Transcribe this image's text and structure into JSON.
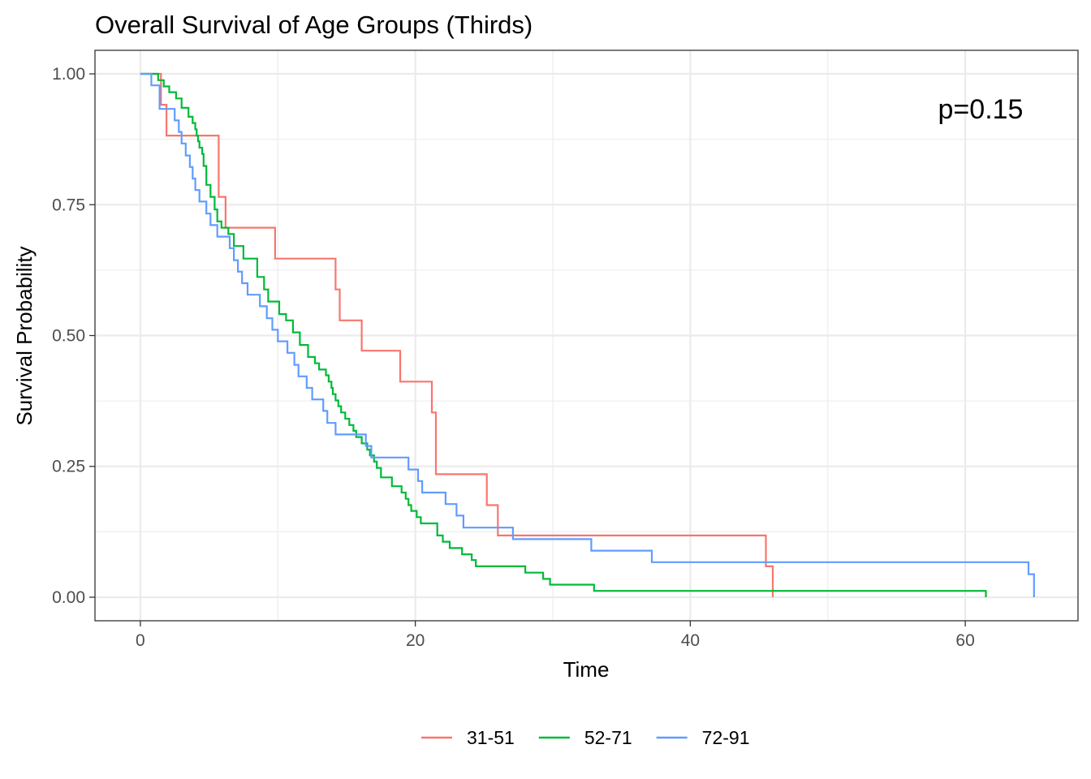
{
  "chart_data": {
    "type": "line",
    "step": true,
    "title": "Overall Survival of Age Groups (Thirds)",
    "xlabel": "Time",
    "ylabel": "Survival Probability",
    "xlim": [
      -3.3,
      68.2
    ],
    "ylim": [
      -0.045,
      1.045
    ],
    "x_ticks": [
      0,
      20,
      40,
      60
    ],
    "x_tick_labels": [
      "0",
      "20",
      "40",
      "60"
    ],
    "y_ticks": [
      0,
      0.25,
      0.5,
      0.75,
      1.0
    ],
    "y_tick_labels": [
      "0.00",
      "0.25",
      "0.50",
      "0.75",
      "1.00"
    ],
    "grid": true,
    "legend_position": "bottom",
    "annotation": "p=0.15",
    "series": [
      {
        "name": "31-51",
        "color": "#F8766D",
        "x": [
          0,
          1.5,
          1.9,
          5.7,
          6.2,
          9.8,
          14.2,
          14.5,
          16.1,
          18.9,
          21.2,
          21.5,
          25.2,
          26.0,
          45.5,
          46.0,
          46.0
        ],
        "y": [
          1.0,
          0.941,
          0.882,
          0.765,
          0.706,
          0.647,
          0.588,
          0.529,
          0.471,
          0.412,
          0.353,
          0.235,
          0.176,
          0.118,
          0.059,
          0.059,
          0.0
        ]
      },
      {
        "name": "52-71",
        "color": "#00BA38",
        "x": [
          0,
          1.3,
          1.7,
          2.1,
          2.6,
          3.0,
          3.5,
          3.8,
          4.0,
          4.1,
          4.2,
          4.3,
          4.5,
          4.6,
          4.8,
          5.1,
          5.4,
          5.6,
          5.9,
          6.4,
          6.8,
          7.5,
          8.5,
          9.0,
          9.3,
          10.1,
          10.6,
          11.1,
          11.6,
          12.2,
          12.7,
          13.0,
          13.5,
          13.7,
          13.9,
          14.0,
          14.2,
          14.4,
          14.6,
          14.9,
          15.2,
          15.5,
          15.7,
          16.1,
          16.5,
          16.7,
          17.0,
          17.2,
          17.5,
          18.3,
          19.0,
          19.3,
          19.5,
          19.7,
          20.1,
          20.4,
          21.6,
          22.0,
          22.5,
          23.4,
          24.1,
          24.4,
          28.0,
          29.3,
          29.8,
          33.0,
          61.5
        ],
        "y": [
          1.0,
          0.988,
          0.976,
          0.965,
          0.953,
          0.935,
          0.918,
          0.906,
          0.894,
          0.882,
          0.871,
          0.859,
          0.847,
          0.824,
          0.788,
          0.765,
          0.741,
          0.718,
          0.706,
          0.694,
          0.671,
          0.647,
          0.612,
          0.588,
          0.565,
          0.541,
          0.529,
          0.506,
          0.482,
          0.459,
          0.447,
          0.435,
          0.424,
          0.412,
          0.4,
          0.388,
          0.376,
          0.365,
          0.353,
          0.341,
          0.329,
          0.318,
          0.306,
          0.294,
          0.282,
          0.271,
          0.259,
          0.247,
          0.229,
          0.212,
          0.2,
          0.188,
          0.176,
          0.165,
          0.153,
          0.141,
          0.118,
          0.106,
          0.094,
          0.082,
          0.071,
          0.059,
          0.047,
          0.035,
          0.024,
          0.012,
          0.0
        ]
      },
      {
        "name": "72-91",
        "color": "#619CFF",
        "x": [
          0,
          0.8,
          1.4,
          2.5,
          2.8,
          3.0,
          3.3,
          3.6,
          3.8,
          4.0,
          4.3,
          4.8,
          5.1,
          5.6,
          6.5,
          6.8,
          7.1,
          7.4,
          7.8,
          8.7,
          9.2,
          9.6,
          10.0,
          10.7,
          11.2,
          11.5,
          12.1,
          12.5,
          13.3,
          13.6,
          14.2,
          16.4,
          16.8,
          19.5,
          20.2,
          20.5,
          22.2,
          23.0,
          23.5,
          27.1,
          32.8,
          37.2,
          64.6,
          65.0,
          65.0
        ],
        "y": [
          1.0,
          0.978,
          0.933,
          0.911,
          0.889,
          0.867,
          0.844,
          0.822,
          0.8,
          0.778,
          0.756,
          0.733,
          0.711,
          0.689,
          0.667,
          0.644,
          0.622,
          0.6,
          0.578,
          0.556,
          0.533,
          0.511,
          0.489,
          0.467,
          0.444,
          0.422,
          0.4,
          0.378,
          0.356,
          0.333,
          0.311,
          0.289,
          0.267,
          0.244,
          0.222,
          0.2,
          0.178,
          0.156,
          0.133,
          0.111,
          0.089,
          0.067,
          0.044,
          0.022,
          0.0
        ]
      }
    ]
  }
}
